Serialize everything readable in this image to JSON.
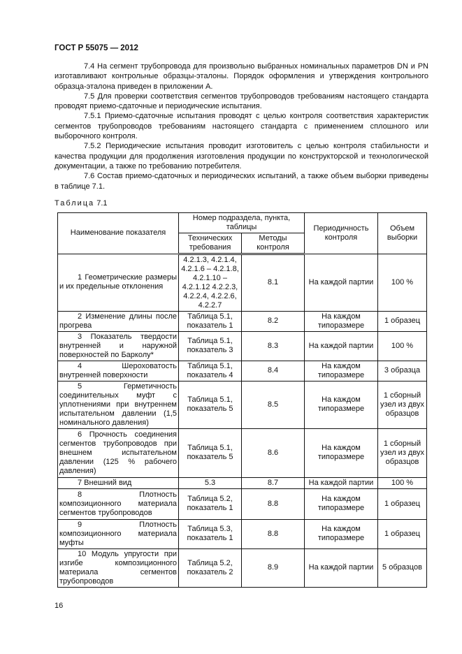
{
  "header": "ГОСТ Р 55075 — 2012",
  "paragraphs": [
    "7.4 На сегмент трубопровода для произвольно выбранных номинальных параметров DN и PN изготавливают контрольные образцы-эталоны. Порядок оформления и утверждения контрольного образца-эталона приведен в приложении А.",
    "7.5 Для проверки соответствия сегментов трубопроводов требованиям настоящего стандарта проводят приемо-сдаточные и периодические испытания.",
    "7.5.1 Приемо-сдаточные испытания проводят с целью контроля соответствия характеристик сегментов трубопроводов требованиям настоящего стандарта с применением сплошного или выборочного контроля.",
    "7.5.2 Периодические испытания проводит изготовитель с целью контроля стабильности и качества продукции для продолжения изготовления продукции по конструкторской и технологической документации, а также по требованию потребителя.",
    "7.6 Состав приемо-сдаточных и периодических испытаний, а также объем выборки приведены в таблице 7.1."
  ],
  "table_caption": "Таблица",
  "table_number": "7.1",
  "table": {
    "headers": {
      "name": "Наименование показателя",
      "group": "Номер подраздела, пункта, таблицы",
      "tech": "Технических требования",
      "methods": "Методы контроля",
      "period": "Периодичность контроля",
      "volume": "Объем выборки"
    },
    "rows": [
      {
        "name": "1 Геометрические размеры и их предельные отклонения",
        "tech": "4.2.1.3, 4.2.1.4, 4.2.1.6 – 4.2.1.8, 4.2.1.10 – 4.2.1.12 4.2.2.3, 4.2.2.4, 4.2.2.6, 4.2.2.7",
        "method": "8.1",
        "period": "На каждой партии",
        "volume": "100 %"
      },
      {
        "name": "2 Изменение длины после прогрева",
        "tech": "Таблица 5.1, показатель 1",
        "method": "8.2",
        "period": "На каждом типоразмере",
        "volume": "1 образец"
      },
      {
        "name": "3 Показатель твердости внутренней и наружной поверхностей по Барколу*",
        "tech": "Таблица 5.1, показатель 3",
        "method": "8.3",
        "period": "На каждой партии",
        "volume": "100 %"
      },
      {
        "name": "4 Шероховатость внутренней поверхности",
        "tech": "Таблица 5.1, показатель 4",
        "method": "8.4",
        "period": "На каждом типоразмере",
        "volume": "3 образца"
      },
      {
        "name": "5 Герметичность соединительных муфт с уплотнениями при внутреннем испытательном давлении (1,5 номинального давления)",
        "tech": "Таблица 5.1, показатель 5",
        "method": "8.5",
        "period": "На каждом типоразмере",
        "volume": "1 сборный узел из двух образцов"
      },
      {
        "name": "6 Прочность соединения сегментов трубопроводов при внешнем испытательном давлении (125 % рабочего давления)",
        "tech": "Таблица 5.1, показатель 5",
        "method": "8.6",
        "period": "На каждом типоразмере",
        "volume": "1 сборный узел из двух образцов"
      },
      {
        "name": "7 Внешний вид",
        "tech": "5.3",
        "method": "8.7",
        "period": "На каждой партии",
        "volume": "100 %"
      },
      {
        "name": "8 Плотность композиционного материала сегментов трубопроводов",
        "tech": "Таблица 5.2, показатель 1",
        "method": "8.8",
        "period": "На каждом типоразмере",
        "volume": "1 образец"
      },
      {
        "name": "9 Плотность композиционного материала муфты",
        "tech": "Таблица 5.3, показатель 1",
        "method": "8.8",
        "period": "На каждом типоразмере",
        "volume": "1 образец"
      },
      {
        "name": "10 Модуль упругости при изгибе композиционного материала сегментов трубопроводов",
        "tech": "Таблица 5.2, показатель 2",
        "method": "8.9",
        "period": "На каждой партии",
        "volume": "5 образцов"
      }
    ]
  },
  "page_number": "16"
}
